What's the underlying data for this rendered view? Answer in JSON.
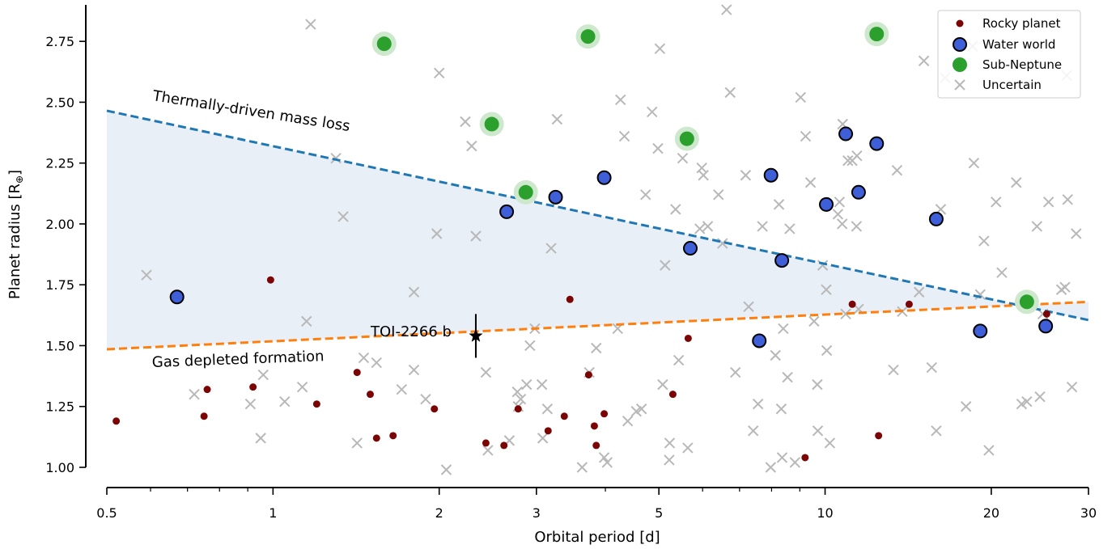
{
  "chart_data": {
    "type": "scatter",
    "x_scale": "log",
    "xlabel": "Orbital period [d]",
    "ylabel": "Planet radius [R",
    "ylabel_sub": "⊕",
    "ylabel_end": "]",
    "xlim": [
      0.5,
      30
    ],
    "ylim": [
      1.0,
      2.9
    ],
    "x_ticks": [
      0.5,
      1,
      2,
      3,
      5,
      10,
      20,
      30
    ],
    "x_tick_labels": [
      "0.5",
      "1",
      "2",
      "3",
      "5",
      "10",
      "20",
      "30"
    ],
    "y_ticks": [
      1.0,
      1.25,
      1.5,
      1.75,
      2.0,
      2.25,
      2.5,
      2.75
    ],
    "y_tick_labels": [
      "1.00",
      "1.25",
      "1.50",
      "1.75",
      "2.00",
      "2.25",
      "2.50",
      "2.75"
    ],
    "legend_position": "top-right",
    "colors": {
      "rocky": "#7b0505",
      "water": "#3f5fd8",
      "subneptune": "#2ca02c",
      "subneptune_halo": "#cde8cd",
      "uncertain": "#b8b8b8",
      "thermal_line": "#1f77b4",
      "gas_line": "#ff7f0e",
      "shade": "#e8eff6"
    },
    "lines": [
      {
        "name": "Thermally-driven mass loss",
        "x": [
          0.5,
          30
        ],
        "y": [
          2.465,
          1.605
        ],
        "color": "#1f77b4"
      },
      {
        "name": "Gas depleted formation",
        "x": [
          0.5,
          30
        ],
        "y": [
          1.485,
          1.68
        ],
        "color": "#ff7f0e"
      }
    ],
    "annotations": {
      "thermal": "Thermally-driven mass loss",
      "gas": "Gas depleted formation",
      "toi": "TOI-2266 b"
    },
    "highlight": {
      "name": "TOI-2266 b",
      "x": 2.33,
      "y": 1.54,
      "yerr": 0.09
    },
    "series": [
      {
        "name": "Rocky planet",
        "kind": "rocky",
        "points": [
          [
            0.52,
            1.19
          ],
          [
            0.76,
            1.32
          ],
          [
            0.75,
            1.21
          ],
          [
            0.92,
            1.33
          ],
          [
            0.99,
            1.77
          ],
          [
            1.2,
            1.26
          ],
          [
            1.42,
            1.39
          ],
          [
            1.5,
            1.3
          ],
          [
            1.54,
            1.12
          ],
          [
            1.65,
            1.13
          ],
          [
            1.96,
            1.24
          ],
          [
            2.43,
            1.1
          ],
          [
            2.62,
            1.09
          ],
          [
            2.78,
            1.24
          ],
          [
            3.15,
            1.15
          ],
          [
            3.37,
            1.21
          ],
          [
            3.45,
            1.69
          ],
          [
            3.73,
            1.38
          ],
          [
            3.82,
            1.17
          ],
          [
            3.85,
            1.09
          ],
          [
            3.98,
            1.22
          ],
          [
            5.3,
            1.3
          ],
          [
            5.65,
            1.53
          ],
          [
            9.2,
            1.04
          ],
          [
            11.2,
            1.67
          ],
          [
            12.5,
            1.13
          ],
          [
            14.2,
            1.67
          ],
          [
            25.2,
            1.63
          ]
        ]
      },
      {
        "name": "Water world",
        "kind": "water",
        "points": [
          [
            0.67,
            1.7
          ],
          [
            2.65,
            2.05
          ],
          [
            3.25,
            2.11
          ],
          [
            3.98,
            2.19
          ],
          [
            5.7,
            1.9
          ],
          [
            7.6,
            1.52
          ],
          [
            7.98,
            2.2
          ],
          [
            8.35,
            1.85
          ],
          [
            10.05,
            2.08
          ],
          [
            10.9,
            2.37
          ],
          [
            11.5,
            2.13
          ],
          [
            12.4,
            2.33
          ],
          [
            15.9,
            2.02
          ],
          [
            19.1,
            1.56
          ],
          [
            25.1,
            1.58
          ]
        ]
      },
      {
        "name": "Sub-Neptune",
        "kind": "subneptune",
        "points": [
          [
            1.59,
            2.74
          ],
          [
            2.49,
            2.41
          ],
          [
            2.87,
            2.13
          ],
          [
            3.72,
            2.77
          ],
          [
            5.62,
            2.35
          ],
          [
            12.4,
            2.78
          ],
          [
            23.2,
            1.68
          ]
        ]
      },
      {
        "name": "Uncertain",
        "kind": "uncertain",
        "points": [
          [
            0.59,
            1.79
          ],
          [
            0.72,
            1.3
          ],
          [
            0.91,
            1.26
          ],
          [
            0.95,
            1.12
          ],
          [
            0.96,
            1.38
          ],
          [
            1.05,
            1.27
          ],
          [
            1.15,
            1.6
          ],
          [
            1.13,
            1.33
          ],
          [
            1.17,
            2.82
          ],
          [
            1.3,
            2.27
          ],
          [
            1.34,
            2.03
          ],
          [
            1.42,
            1.1
          ],
          [
            1.46,
            1.45
          ],
          [
            1.54,
            1.43
          ],
          [
            1.71,
            1.32
          ],
          [
            1.8,
            1.72
          ],
          [
            1.8,
            1.4
          ],
          [
            1.89,
            1.28
          ],
          [
            1.98,
            1.96
          ],
          [
            2.0,
            2.62
          ],
          [
            2.06,
            0.99
          ],
          [
            2.23,
            2.42
          ],
          [
            2.29,
            2.32
          ],
          [
            2.33,
            1.95
          ],
          [
            2.45,
            1.07
          ],
          [
            2.43,
            1.39
          ],
          [
            2.68,
            1.11
          ],
          [
            2.77,
            1.31
          ],
          [
            2.78,
            1.25
          ],
          [
            2.81,
            1.28
          ],
          [
            2.88,
            1.34
          ],
          [
            2.92,
            1.5
          ],
          [
            2.98,
            1.57
          ],
          [
            3.07,
            1.34
          ],
          [
            3.08,
            1.12
          ],
          [
            3.14,
            1.24
          ],
          [
            3.19,
            1.9
          ],
          [
            3.27,
            2.43
          ],
          [
            3.63,
            1.0
          ],
          [
            3.74,
            1.39
          ],
          [
            3.85,
            1.49
          ],
          [
            3.98,
            1.04
          ],
          [
            4.03,
            1.02
          ],
          [
            4.26,
            2.51
          ],
          [
            4.33,
            2.36
          ],
          [
            4.21,
            1.57
          ],
          [
            4.39,
            1.19
          ],
          [
            4.55,
            1.23
          ],
          [
            4.65,
            1.24
          ],
          [
            4.73,
            2.12
          ],
          [
            4.86,
            2.46
          ],
          [
            5.02,
            2.72
          ],
          [
            4.98,
            2.31
          ],
          [
            5.13,
            1.83
          ],
          [
            5.08,
            1.34
          ],
          [
            5.23,
            1.1
          ],
          [
            5.22,
            1.03
          ],
          [
            5.36,
            2.06
          ],
          [
            5.43,
            1.44
          ],
          [
            5.52,
            2.27
          ],
          [
            5.64,
            1.08
          ],
          [
            5.93,
            1.98
          ],
          [
            5.98,
            2.23
          ],
          [
            6.02,
            2.2
          ],
          [
            6.13,
            1.99
          ],
          [
            6.41,
            2.12
          ],
          [
            6.52,
            1.92
          ],
          [
            6.63,
            2.88
          ],
          [
            6.73,
            2.54
          ],
          [
            6.88,
            1.39
          ],
          [
            7.18,
            2.2
          ],
          [
            7.27,
            1.66
          ],
          [
            7.41,
            1.15
          ],
          [
            7.56,
            1.26
          ],
          [
            7.7,
            1.99
          ],
          [
            7.97,
            1.0
          ],
          [
            8.13,
            1.46
          ],
          [
            8.25,
            2.08
          ],
          [
            8.33,
            1.24
          ],
          [
            8.36,
            1.04
          ],
          [
            8.4,
            1.57
          ],
          [
            8.55,
            1.37
          ],
          [
            8.63,
            1.98
          ],
          [
            8.82,
            1.02
          ],
          [
            9.03,
            2.52
          ],
          [
            9.22,
            2.36
          ],
          [
            9.41,
            2.17
          ],
          [
            9.55,
            1.6
          ],
          [
            9.68,
            1.34
          ],
          [
            9.7,
            1.15
          ],
          [
            9.9,
            1.83
          ],
          [
            10.05,
            1.73
          ],
          [
            10.07,
            1.48
          ],
          [
            10.2,
            1.1
          ],
          [
            10.55,
            2.04
          ],
          [
            10.62,
            2.09
          ],
          [
            10.74,
            2.0
          ],
          [
            10.76,
            2.41
          ],
          [
            10.9,
            1.63
          ],
          [
            11.0,
            2.26
          ],
          [
            11.2,
            2.26
          ],
          [
            11.4,
            1.99
          ],
          [
            11.42,
            2.28
          ],
          [
            11.5,
            1.65
          ],
          [
            13.5,
            2.22
          ],
          [
            13.8,
            1.64
          ],
          [
            13.3,
            1.4
          ],
          [
            15.1,
            2.67
          ],
          [
            14.8,
            1.72
          ],
          [
            15.6,
            1.41
          ],
          [
            15.9,
            1.15
          ],
          [
            16.2,
            2.06
          ],
          [
            16.5,
            2.6
          ],
          [
            18.0,
            1.25
          ],
          [
            18.6,
            2.25
          ],
          [
            19.1,
            1.71
          ],
          [
            19.4,
            1.93
          ],
          [
            19.8,
            1.07
          ],
          [
            20.4,
            2.09
          ],
          [
            20.9,
            1.8
          ],
          [
            22.2,
            2.17
          ],
          [
            22.7,
            1.26
          ],
          [
            23.2,
            1.27
          ],
          [
            24.2,
            1.99
          ],
          [
            24.5,
            1.29
          ],
          [
            24.8,
            1.63
          ],
          [
            25.4,
            2.09
          ],
          [
            26.8,
            1.73
          ],
          [
            27.2,
            1.74
          ],
          [
            27.5,
            2.1
          ],
          [
            28.0,
            1.33
          ],
          [
            28.5,
            1.96
          ],
          [
            27.4,
            2.61
          ],
          [
            18.5,
            2.73
          ]
        ]
      }
    ]
  }
}
